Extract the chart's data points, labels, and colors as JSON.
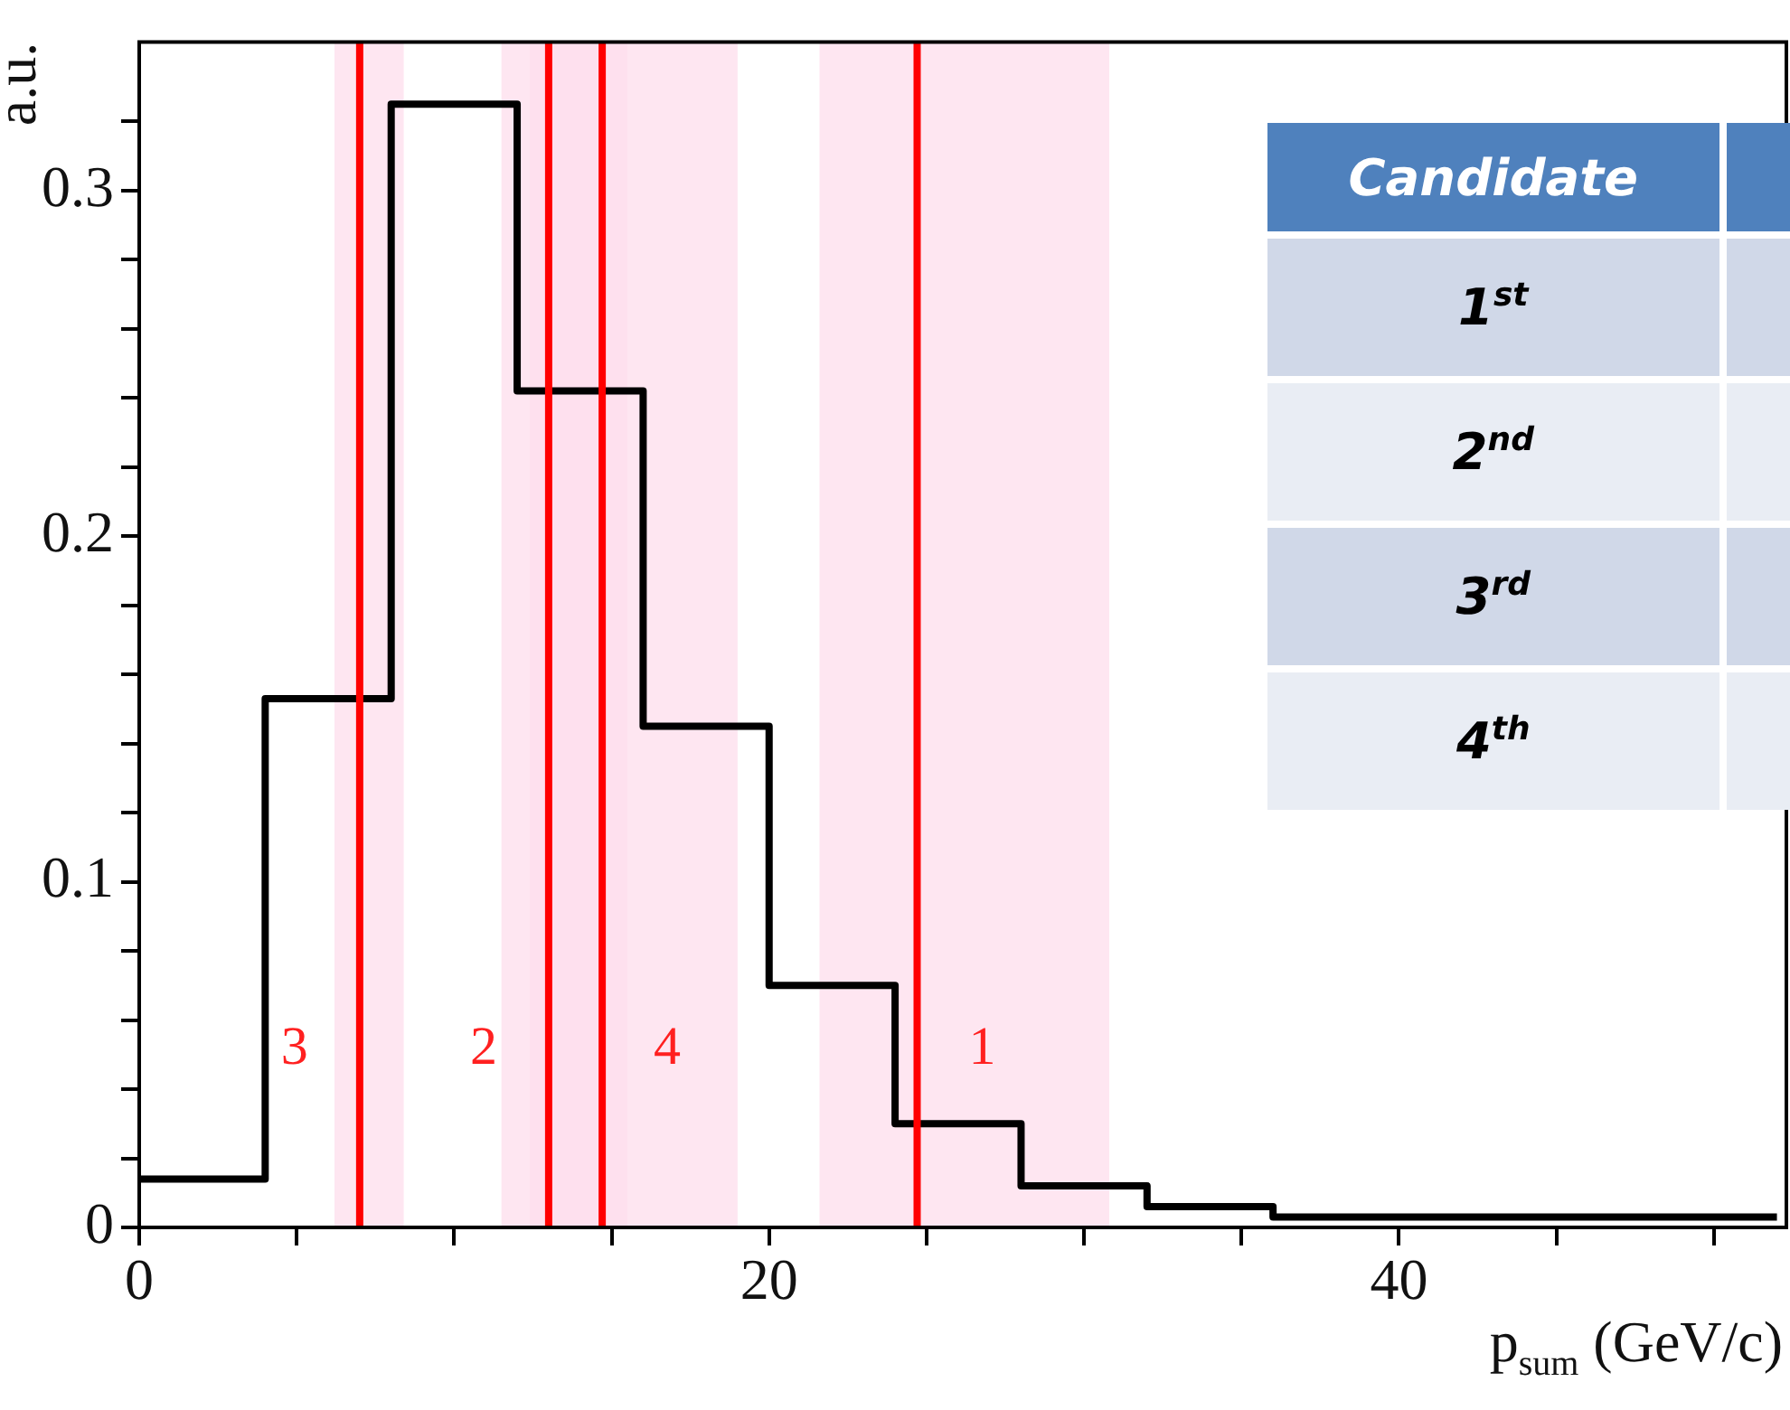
{
  "chart_data": {
    "type": "histogram",
    "xlabel": "p$_{sum}$ (GeV/c)",
    "ylabel": "a.u.",
    "bins": [
      0,
      4,
      8,
      12,
      16,
      20,
      24,
      28,
      32,
      36,
      40,
      44,
      48,
      52
    ],
    "values": [
      0.014,
      0.153,
      0.325,
      0.242,
      0.145,
      0.07,
      0.03,
      0.012,
      0.006,
      0.003,
      0.003,
      0.003,
      0.003
    ],
    "color": "#000000",
    "xlim": [
      0,
      52.3
    ],
    "ylim": [
      0,
      0.343
    ],
    "xticks": [
      0,
      {
        "value": 5,
        "label": null
      },
      {
        "value": 10,
        "label": null
      },
      {
        "value": 15,
        "label": null
      },
      20,
      {
        "value": 25,
        "label": null
      },
      {
        "value": 30,
        "label": null
      },
      {
        "value": 35,
        "label": null
      },
      40,
      {
        "value": 45,
        "label": null
      },
      {
        "value": 50,
        "label": null
      }
    ],
    "yticks": [
      0,
      {
        "value": 0.02,
        "label": null
      },
      {
        "value": 0.04,
        "label": null
      },
      {
        "value": 0.06,
        "label": null
      },
      {
        "value": 0.08,
        "label": null
      },
      0.1,
      {
        "value": 0.12,
        "label": null
      },
      {
        "value": 0.14,
        "label": null
      },
      {
        "value": 0.16,
        "label": null
      },
      {
        "value": 0.18,
        "label": null
      },
      0.2,
      {
        "value": 0.22,
        "label": null
      },
      {
        "value": 0.24,
        "label": null
      },
      {
        "value": 0.26,
        "label": null
      },
      {
        "value": 0.28,
        "label": null
      },
      0.3,
      {
        "value": 0.32,
        "label": null
      }
    ],
    "bands": [
      {
        "axis": "x",
        "from": 6.2,
        "to": 8.4,
        "color": "#fdddec"
      },
      {
        "axis": "x",
        "from": 11.5,
        "to": 15.5,
        "color": "#fdddec"
      },
      {
        "axis": "x",
        "from": 12.4,
        "to": 19.0,
        "color": "#fdddec"
      },
      {
        "axis": "x",
        "from": 21.6,
        "to": 30.8,
        "color": "#fdddec"
      }
    ],
    "ref_lines": [
      {
        "axis": "x",
        "value": 7.0,
        "color": "#ff0000"
      },
      {
        "axis": "x",
        "value": 13.0,
        "color": "#ff0000"
      },
      {
        "axis": "x",
        "value": 14.7,
        "color": "#ff0000"
      },
      {
        "axis": "x",
        "value": 24.7,
        "color": "#ff0000"
      }
    ],
    "annotations": [
      {
        "text": "3",
        "x": 7.0
      },
      {
        "text": "2",
        "x": 13.0
      },
      {
        "text": "4",
        "x": 14.7
      },
      {
        "text": "1",
        "x": 24.7
      },
      "Candidate",
      "1$^{st}$",
      "2$^{nd}$",
      "3$^{rd}$",
      "4$^{th}$"
    ],
    "grid": false
  }
}
